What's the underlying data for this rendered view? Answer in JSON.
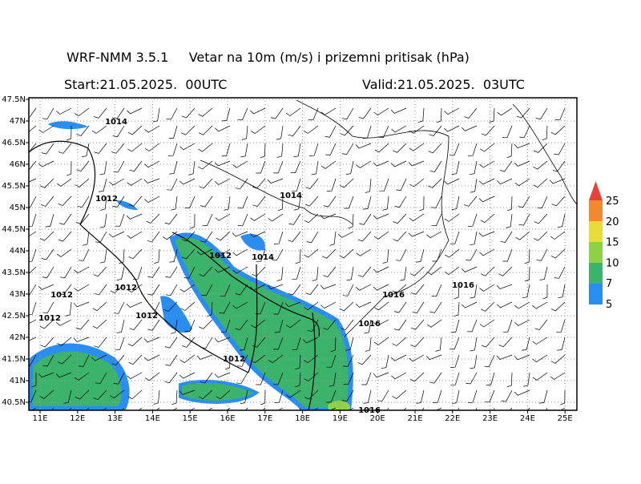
{
  "header": {
    "title": "WRF-NMM 3.5.1     Vetar na 10m (m/s) i prizemni pritisak (hPa)",
    "start": "Start:21.05.2025.  00UTC",
    "valid": "Valid:21.05.2025.  03UTC"
  },
  "map": {
    "lon_ticks": [
      "11E",
      "12E",
      "13E",
      "14E",
      "15E",
      "16E",
      "17E",
      "18E",
      "19E",
      "20E",
      "21E",
      "22E",
      "23E",
      "24E",
      "25E"
    ],
    "lat_ticks": [
      "47.5N",
      "47N",
      "46.5N",
      "46N",
      "45.5N",
      "45N",
      "44.5N",
      "44N",
      "43.5N",
      "43N",
      "42.5N",
      "42N",
      "41.5N",
      "41N",
      "40.5N"
    ],
    "isobar_labels": [
      "1014",
      "1012",
      "1014",
      "1012",
      "1014",
      "1012",
      "1012",
      "1012",
      "1012",
      "1012",
      "1016",
      "1016",
      "1016",
      "1016"
    ],
    "colorbar": [
      "25",
      "20",
      "15",
      "10",
      "7",
      "5"
    ]
  }
}
